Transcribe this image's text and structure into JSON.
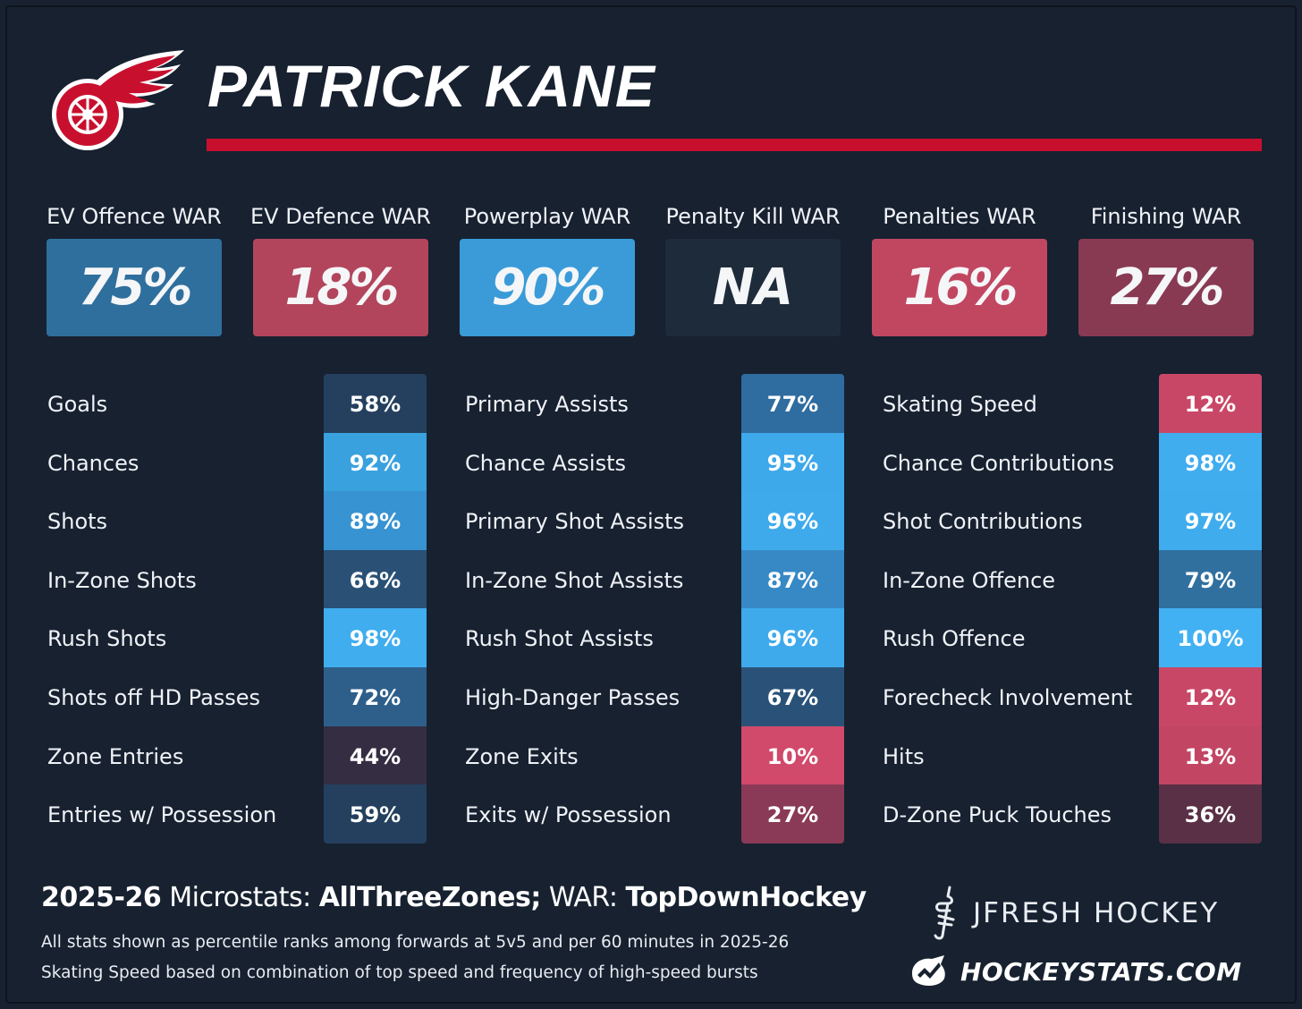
{
  "player": {
    "name": "PATRICK KANE"
  },
  "colors": {
    "background": "#172130",
    "accent_red": "#c8102e",
    "war_boxes": [
      "#2f6f9d",
      "#b2455c",
      "#3a9bd8",
      "#1e2b3b",
      "#c14761",
      "#883a52"
    ]
  },
  "icons": {
    "team_logo": "red-wings-logo-icon",
    "jfresh_logo": "jfresh-logo-icon",
    "hockeystats_logo": "hockeystats-logo-icon"
  },
  "war": [
    {
      "label": "EV Offence WAR",
      "value": "75%"
    },
    {
      "label": "EV Defence WAR",
      "value": "18%"
    },
    {
      "label": "Powerplay WAR",
      "value": "90%"
    },
    {
      "label": "Penalty Kill WAR",
      "value": "NA"
    },
    {
      "label": "Penalties WAR",
      "value": "16%"
    },
    {
      "label": "Finishing WAR",
      "value": "27%"
    }
  ],
  "columns": [
    {
      "rows": [
        {
          "label": "Goals",
          "value": "58%",
          "color": "#24405e"
        },
        {
          "label": "Chances",
          "value": "92%",
          "color": "#3aa1df"
        },
        {
          "label": "Shots",
          "value": "89%",
          "color": "#3793d1"
        },
        {
          "label": "In-Zone Shots",
          "value": "66%",
          "color": "#2a5075"
        },
        {
          "label": "Rush Shots",
          "value": "98%",
          "color": "#40adef"
        },
        {
          "label": "Shots off HD Passes",
          "value": "72%",
          "color": "#2e5f8b"
        },
        {
          "label": "Zone Entries",
          "value": "44%",
          "color": "#352d42"
        },
        {
          "label": "Entries w/ Possession",
          "value": "59%",
          "color": "#24405e"
        }
      ]
    },
    {
      "rows": [
        {
          "label": "Primary Assists",
          "value": "77%",
          "color": "#2f6c9f"
        },
        {
          "label": "Chance Assists",
          "value": "95%",
          "color": "#3da8ea"
        },
        {
          "label": "Primary Shot Assists",
          "value": "96%",
          "color": "#3eaaec"
        },
        {
          "label": "In-Zone Shot Assists",
          "value": "87%",
          "color": "#3689c5"
        },
        {
          "label": "Rush Shot Assists",
          "value": "96%",
          "color": "#3eaaec"
        },
        {
          "label": "High-Danger Passes",
          "value": "67%",
          "color": "#2a5278"
        },
        {
          "label": "Zone Exits",
          "value": "10%",
          "color": "#d1496b"
        },
        {
          "label": "Exits w/ Possession",
          "value": "27%",
          "color": "#8a3a56"
        }
      ]
    },
    {
      "rows": [
        {
          "label": "Skating Speed",
          "value": "12%",
          "color": "#c94766"
        },
        {
          "label": "Chance Contributions",
          "value": "98%",
          "color": "#40adef"
        },
        {
          "label": "Shot Contributions",
          "value": "97%",
          "color": "#3facee"
        },
        {
          "label": "In-Zone Offence",
          "value": "79%",
          "color": "#30709f"
        },
        {
          "label": "Rush Offence",
          "value": "100%",
          "color": "#42b1f3"
        },
        {
          "label": "Forecheck Involvement",
          "value": "12%",
          "color": "#c94766"
        },
        {
          "label": "Hits",
          "value": "13%",
          "color": "#c24664"
        },
        {
          "label": "D-Zone Puck Touches",
          "value": "36%",
          "color": "#5a3046"
        }
      ]
    }
  ],
  "footer": {
    "season": "2025-26",
    "microstats_prefix": " Microstats: ",
    "microstats_source": "AllThreeZones;",
    "war_prefix": " WAR: ",
    "war_source": "TopDownHockey",
    "note1": "All stats shown as percentile ranks among forwards at 5v5 and per 60 minutes in 2025-26",
    "note2": "Skating Speed based on combination of top speed and frequency of high-speed bursts",
    "brand1": "JFRESH HOCKEY",
    "brand2": "HOCKEYSTATS.COM"
  }
}
